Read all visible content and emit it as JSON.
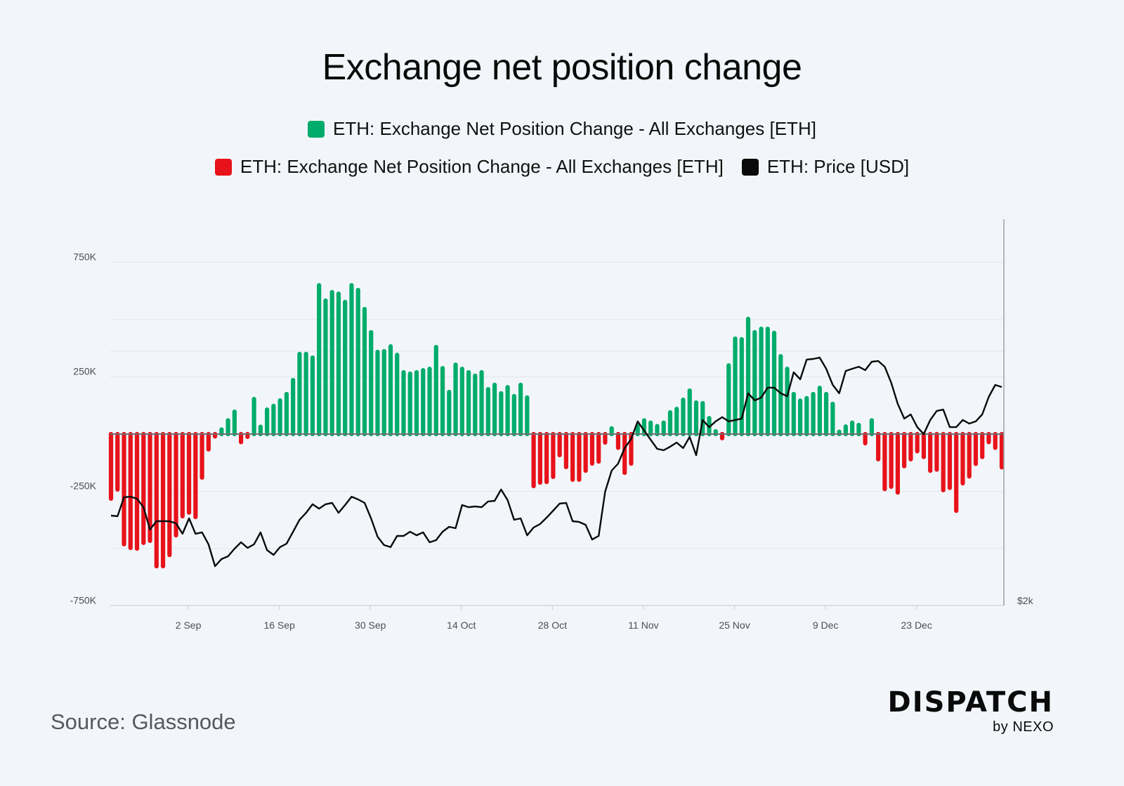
{
  "title": "Exchange net position change",
  "legend": [
    {
      "label": "ETH: Exchange Net Position Change - All Exchanges [ETH]",
      "color": "#00ac6b",
      "icon": "square-swatch"
    },
    {
      "label": "ETH: Exchange Net Position Change - All Exchanges [ETH]",
      "color": "#e8121a",
      "icon": "square-swatch"
    },
    {
      "label": "ETH: Price [USD]",
      "color": "#0a0a0a",
      "icon": "square-swatch"
    }
  ],
  "source": "Source: Glassnode",
  "brand": {
    "name": "DISPATCH",
    "sub": "by NEXO"
  },
  "chart_data": {
    "type": "bar",
    "title": "Exchange net position change",
    "xlabel": "",
    "ylabel": "",
    "ylim": [
      -750000,
      750000
    ],
    "y_ticks": [
      {
        "value": 750000,
        "label": "750K"
      },
      {
        "value": 250000,
        "label": "250K"
      },
      {
        "value": -250000,
        "label": "-250K"
      },
      {
        "value": -750000,
        "label": "-750K"
      }
    ],
    "y2_ticks": [
      {
        "value": 2000,
        "label": "$2k"
      }
    ],
    "y2lim": [
      2000,
      4000
    ],
    "x_start": "2024-08-21",
    "x_ticks": [
      {
        "index": 12,
        "label": "2 Sep"
      },
      {
        "index": 26,
        "label": "16 Sep"
      },
      {
        "index": 40,
        "label": "30 Sep"
      },
      {
        "index": 54,
        "label": "14 Oct"
      },
      {
        "index": 68,
        "label": "28 Oct"
      },
      {
        "index": 82,
        "label": "11 Nov"
      },
      {
        "index": 96,
        "label": "25 Nov"
      },
      {
        "index": 110,
        "label": "9 Dec"
      },
      {
        "index": 124,
        "label": "23 Dec"
      }
    ],
    "grid": true,
    "legend_position": "top-center",
    "positive_color": "#00ac6b",
    "negative_color": "#e8121a",
    "price_color": "#0a0a0a",
    "series": [
      {
        "name": "ETH: Exchange Net Position Change - All Exchanges [ETH]",
        "unit": "ETH",
        "values": [
          -282000,
          -242000,
          -481000,
          -497000,
          -500000,
          -475000,
          -466000,
          -577000,
          -577000,
          -528000,
          -442000,
          -359000,
          -343000,
          -362000,
          -190000,
          -67000,
          -10000,
          20000,
          60000,
          98000,
          -35000,
          -12000,
          153000,
          32000,
          107000,
          123000,
          147000,
          175000,
          236000,
          350000,
          350000,
          334000,
          650000,
          583000,
          620000,
          613000,
          577000,
          650000,
          629000,
          546000,
          445000,
          359000,
          362000,
          383000,
          346000,
          270000,
          264000,
          270000,
          279000,
          285000,
          380000,
          288000,
          184000,
          303000,
          285000,
          270000,
          255000,
          270000,
          196000,
          215000,
          178000,
          205000,
          166000,
          215000,
          160000,
          -227000,
          -212000,
          -209000,
          -187000,
          -92000,
          -144000,
          -199000,
          -199000,
          -160000,
          -129000,
          -120000,
          -37000,
          25000,
          -60000,
          -169000,
          -129000,
          35000,
          60000,
          50000,
          35000,
          50000,
          95000,
          110000,
          150000,
          190000,
          138000,
          135000,
          70000,
          12000,
          -18000,
          300000,
          417000,
          414000,
          503000,
          445000,
          460000,
          460000,
          442000,
          340000,
          285000,
          175000,
          146000,
          157000,
          175000,
          202000,
          175000,
          132000,
          10000,
          33000,
          50000,
          40000,
          -40000,
          60000,
          -110000,
          -240000,
          -230000,
          -255000,
          -140000,
          -110000,
          -75000,
          -100000,
          -160000,
          -155000,
          -245000,
          -235000,
          -335000,
          -215000,
          -185000,
          -130000,
          -100000,
          -35000,
          -60000,
          -145000
        ]
      },
      {
        "name": "ETH: Price [USD]",
        "unit": "USD",
        "axis": "right",
        "values": [
          2707,
          2702,
          2851,
          2856,
          2840,
          2773,
          2597,
          2663,
          2663,
          2663,
          2646,
          2564,
          2685,
          2564,
          2575,
          2481,
          2309,
          2365,
          2387,
          2447,
          2497,
          2453,
          2481,
          2575,
          2436,
          2398,
          2459,
          2486,
          2580,
          2674,
          2729,
          2796,
          2762,
          2796,
          2807,
          2729,
          2790,
          2856,
          2834,
          2807,
          2685,
          2541,
          2475,
          2459,
          2547,
          2547,
          2580,
          2552,
          2575,
          2497,
          2514,
          2580,
          2619,
          2608,
          2790,
          2773,
          2779,
          2773,
          2818,
          2823,
          2912,
          2829,
          2674,
          2685,
          2552,
          2613,
          2641,
          2691,
          2746,
          2801,
          2807,
          2663,
          2657,
          2635,
          2519,
          2547,
          2895,
          3061,
          3116,
          3238,
          3309,
          3448,
          3376,
          3304,
          3232,
          3221,
          3249,
          3282,
          3238,
          3326,
          3182,
          3459,
          3403,
          3448,
          3481,
          3448,
          3459,
          3470,
          3669,
          3613,
          3635,
          3713,
          3713,
          3669,
          3646,
          3834,
          3779,
          3934,
          3939,
          3950,
          3862,
          3735,
          3669,
          3845,
          3862,
          3878,
          3851,
          3917,
          3923,
          3878,
          3751,
          3586,
          3470,
          3503,
          3403,
          3348,
          3459,
          3530,
          3541,
          3403,
          3403,
          3459,
          3431,
          3448,
          3503,
          3641,
          3735,
          3718
        ]
      }
    ]
  }
}
